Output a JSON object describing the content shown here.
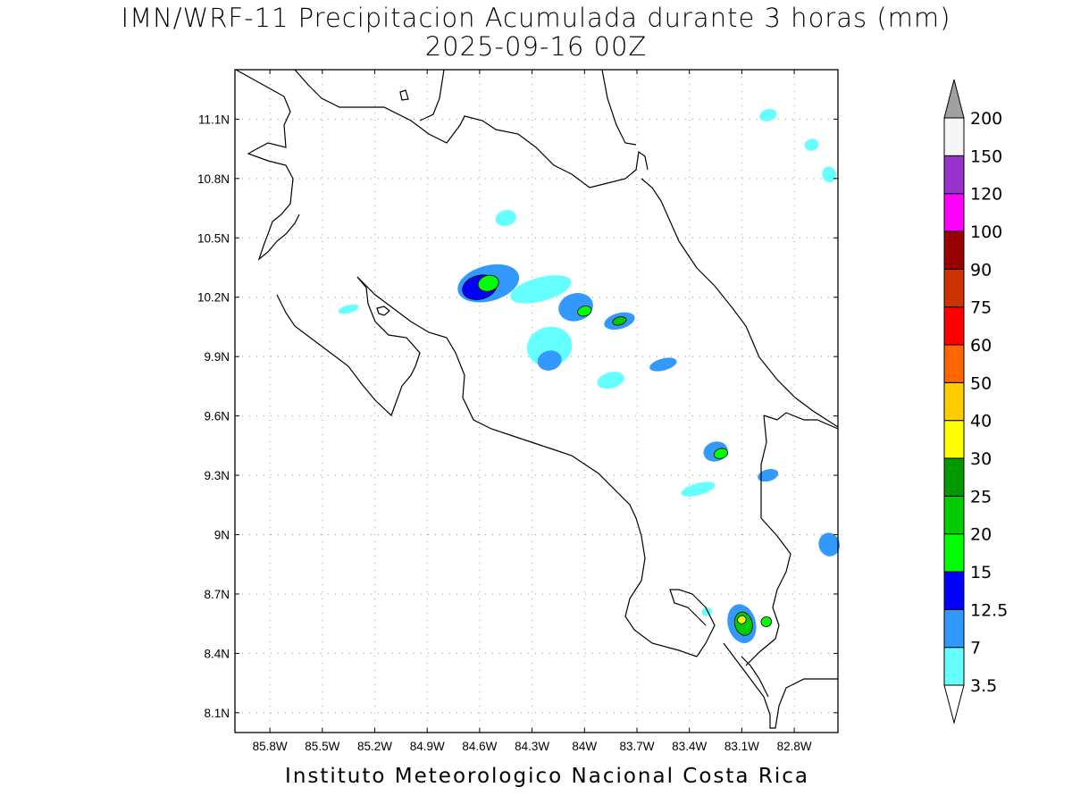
{
  "title": {
    "line1": "IMN/WRF-11 Precipitacion Acumulada durante 3 horas (mm)",
    "line2": "2025-09-16 00Z"
  },
  "footer": "Instituto Meteorologico Nacional Costa Rica",
  "map": {
    "lon_range": [
      -86.0,
      -82.55
    ],
    "lat_range": [
      8.0,
      11.35
    ],
    "lon_ticks": [
      {
        "value": -85.8,
        "label": "85.8W"
      },
      {
        "value": -85.5,
        "label": "85.5W"
      },
      {
        "value": -85.2,
        "label": "85.2W"
      },
      {
        "value": -84.9,
        "label": "84.9W"
      },
      {
        "value": -84.6,
        "label": "84.6W"
      },
      {
        "value": -84.3,
        "label": "84.3W"
      },
      {
        "value": -84.0,
        "label": "84W"
      },
      {
        "value": -83.7,
        "label": "83.7W"
      },
      {
        "value": -83.4,
        "label": "83.4W"
      },
      {
        "value": -83.1,
        "label": "83.1W"
      },
      {
        "value": -82.8,
        "label": "82.8W"
      }
    ],
    "lat_ticks": [
      {
        "value": 11.1,
        "label": "11.1N"
      },
      {
        "value": 10.8,
        "label": "10.8N"
      },
      {
        "value": 10.5,
        "label": "10.5N"
      },
      {
        "value": 10.2,
        "label": "10.2N"
      },
      {
        "value": 9.9,
        "label": "9.9N"
      },
      {
        "value": 9.6,
        "label": "9.6N"
      },
      {
        "value": 9.3,
        "label": "9.3N"
      },
      {
        "value": 9.0,
        "label": "9N"
      },
      {
        "value": 8.7,
        "label": "8.7N"
      },
      {
        "value": 8.4,
        "label": "8.4N"
      },
      {
        "value": 8.1,
        "label": "8.1N"
      }
    ],
    "grid": true
  },
  "colorbar": {
    "unit": "mm",
    "levels": [
      {
        "label": "3.5",
        "color": "#66ffff"
      },
      {
        "label": "7",
        "color": "#3399ff"
      },
      {
        "label": "12.5",
        "color": "#0000ff"
      },
      {
        "label": "15",
        "color": "#00ff00"
      },
      {
        "label": "20",
        "color": "#00cc00"
      },
      {
        "label": "25",
        "color": "#009900"
      },
      {
        "label": "30",
        "color": "#ffff00"
      },
      {
        "label": "40",
        "color": "#ffcc00"
      },
      {
        "label": "50",
        "color": "#ff6600"
      },
      {
        "label": "60",
        "color": "#ff0000"
      },
      {
        "label": "75",
        "color": "#cc3300"
      },
      {
        "label": "90",
        "color": "#990000"
      },
      {
        "label": "100",
        "color": "#ff00ff"
      },
      {
        "label": "120",
        "color": "#9933cc"
      },
      {
        "label": "150",
        "color": "#f5f5f5"
      },
      {
        "label": "200",
        "color": "#a0a0a0"
      }
    ],
    "below_min_color": "#ffffff",
    "above_max_color": "#a0a0a0"
  },
  "precip_cells": [
    {
      "lon": -84.55,
      "lat": 10.27,
      "rx": 0.18,
      "ry": 0.09,
      "level": 1
    },
    {
      "lon": -84.6,
      "lat": 10.25,
      "rx": 0.1,
      "ry": 0.06,
      "level": 2
    },
    {
      "lon": -84.55,
      "lat": 10.27,
      "rx": 0.06,
      "ry": 0.04,
      "level": 3
    },
    {
      "lon": -84.25,
      "lat": 10.24,
      "rx": 0.18,
      "ry": 0.06,
      "level": 0
    },
    {
      "lon": -84.05,
      "lat": 10.15,
      "rx": 0.1,
      "ry": 0.07,
      "level": 1
    },
    {
      "lon": -84.0,
      "lat": 10.13,
      "rx": 0.04,
      "ry": 0.025,
      "level": 3
    },
    {
      "lon": -83.8,
      "lat": 10.08,
      "rx": 0.09,
      "ry": 0.04,
      "level": 1
    },
    {
      "lon": -83.8,
      "lat": 10.08,
      "rx": 0.04,
      "ry": 0.02,
      "level": 4
    },
    {
      "lon": -84.2,
      "lat": 9.95,
      "rx": 0.13,
      "ry": 0.1,
      "level": 0
    },
    {
      "lon": -84.2,
      "lat": 9.88,
      "rx": 0.07,
      "ry": 0.05,
      "level": 1
    },
    {
      "lon": -83.55,
      "lat": 9.86,
      "rx": 0.08,
      "ry": 0.03,
      "level": 1
    },
    {
      "lon": -83.85,
      "lat": 9.78,
      "rx": 0.08,
      "ry": 0.04,
      "level": 0
    },
    {
      "lon": -84.45,
      "lat": 10.6,
      "rx": 0.06,
      "ry": 0.04,
      "level": 0
    },
    {
      "lon": -85.35,
      "lat": 10.14,
      "rx": 0.06,
      "ry": 0.02,
      "level": 0
    },
    {
      "lon": -83.25,
      "lat": 9.42,
      "rx": 0.07,
      "ry": 0.05,
      "level": 1
    },
    {
      "lon": -83.22,
      "lat": 9.41,
      "rx": 0.04,
      "ry": 0.025,
      "level": 3
    },
    {
      "lon": -82.95,
      "lat": 9.3,
      "rx": 0.06,
      "ry": 0.03,
      "level": 1
    },
    {
      "lon": -83.35,
      "lat": 9.23,
      "rx": 0.1,
      "ry": 0.03,
      "level": 0
    },
    {
      "lon": -83.1,
      "lat": 8.55,
      "rx": 0.08,
      "ry": 0.1,
      "level": 1
    },
    {
      "lon": -83.09,
      "lat": 8.55,
      "rx": 0.05,
      "ry": 0.06,
      "level": 4
    },
    {
      "lon": -83.1,
      "lat": 8.57,
      "rx": 0.025,
      "ry": 0.02,
      "level": 6
    },
    {
      "lon": -82.96,
      "lat": 8.56,
      "rx": 0.03,
      "ry": 0.025,
      "level": 3
    },
    {
      "lon": -82.6,
      "lat": 8.95,
      "rx": 0.06,
      "ry": 0.06,
      "level": 1
    },
    {
      "lon": -83.3,
      "lat": 8.61,
      "rx": 0.03,
      "ry": 0.02,
      "level": 0
    },
    {
      "lon": -82.95,
      "lat": 11.12,
      "rx": 0.05,
      "ry": 0.03,
      "level": 0
    },
    {
      "lon": -82.7,
      "lat": 10.97,
      "rx": 0.04,
      "ry": 0.03,
      "level": 0
    },
    {
      "lon": -82.6,
      "lat": 10.82,
      "rx": 0.04,
      "ry": 0.04,
      "level": 0
    }
  ]
}
